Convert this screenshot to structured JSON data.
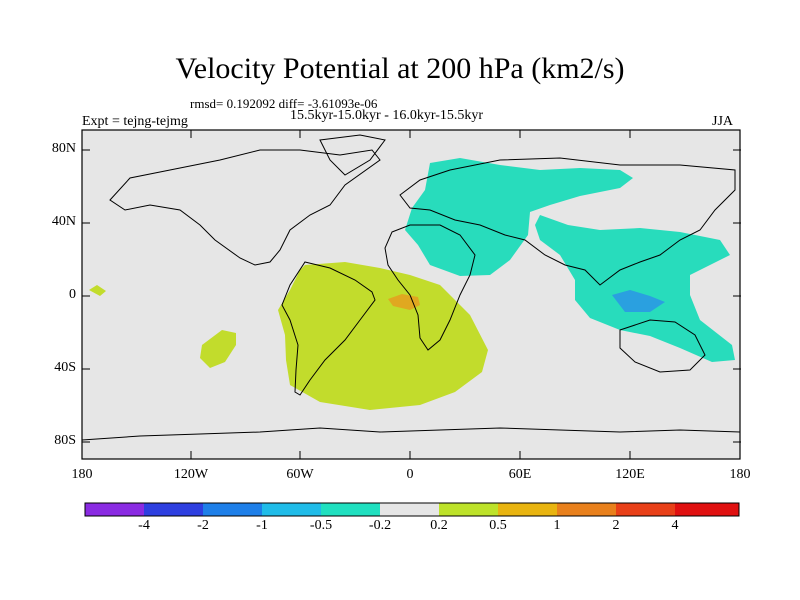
{
  "title": "Velocity Potential at 200 hPa (km2/s)",
  "subtitle_stats": "rmsd= 0.192092 diff= -3.61093e-06",
  "subtitle_period": "15.5kyr-15.0kyr - 16.0kyr-15.5kyr",
  "experiment": "Expt = tejng-tejmg",
  "season": "JJA",
  "lat_labels": [
    "80N",
    "40N",
    "0",
    "40S",
    "80S"
  ],
  "lon_labels": [
    "180",
    "120W",
    "60W",
    "0",
    "60E",
    "120E",
    "180"
  ],
  "colorbar": {
    "labels": [
      "-4",
      "-2",
      "-1",
      "-0.5",
      "-0.2",
      "0.2",
      "0.5",
      "1",
      "2",
      "4"
    ],
    "colors": [
      "#8a2be2",
      "#2e3fe0",
      "#1e7fe8",
      "#20bce8",
      "#20e0c0",
      "#e6e6e6",
      "#bde22a",
      "#e8b410",
      "#e8801c",
      "#e84018",
      "#e01010"
    ]
  },
  "map_colors": {
    "land_background": "#e6e6e6",
    "positive_weak": "#c2dc2c",
    "positive_mid": "#e0a820",
    "negative_weak": "#28dcbc",
    "negative_mid": "#2aa0e0"
  }
}
